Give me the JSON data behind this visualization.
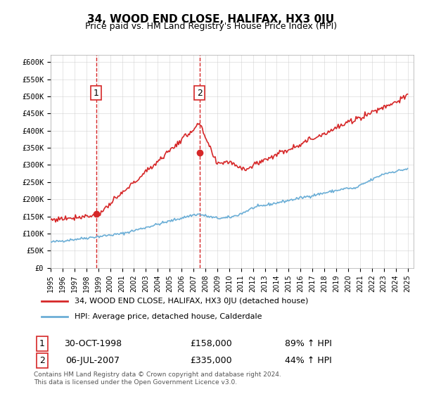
{
  "title": "34, WOOD END CLOSE, HALIFAX, HX3 0JU",
  "subtitle": "Price paid vs. HM Land Registry's House Price Index (HPI)",
  "legend_line1": "34, WOOD END CLOSE, HALIFAX, HX3 0JU (detached house)",
  "legend_line2": "HPI: Average price, detached house, Calderdale",
  "table_row1_num": "1",
  "table_row1_date": "30-OCT-1998",
  "table_row1_price": "£158,000",
  "table_row1_hpi": "89% ↑ HPI",
  "table_row2_num": "2",
  "table_row2_date": "06-JUL-2007",
  "table_row2_price": "£335,000",
  "table_row2_hpi": "44% ↑ HPI",
  "footer": "Contains HM Land Registry data © Crown copyright and database right 2024.\nThis data is licensed under the Open Government Licence v3.0.",
  "hpi_color": "#6baed6",
  "price_color": "#d62728",
  "marker_color": "#d62728",
  "vline_color": "#d62728",
  "bg_color": "#ffffff",
  "grid_color": "#cccccc",
  "ylim": [
    0,
    620000
  ],
  "yticks": [
    0,
    50000,
    100000,
    150000,
    200000,
    250000,
    300000,
    350000,
    400000,
    450000,
    500000,
    550000,
    600000
  ],
  "ytick_labels": [
    "£0",
    "£50K",
    "£100K",
    "£150K",
    "£200K",
    "£250K",
    "£300K",
    "£350K",
    "£400K",
    "£450K",
    "£500K",
    "£550K",
    "£600K"
  ],
  "sale1_year": 1998.83,
  "sale1_price": 158000,
  "sale2_year": 2007.51,
  "sale2_price": 335000,
  "sale1_label": "1",
  "sale2_label": "2"
}
